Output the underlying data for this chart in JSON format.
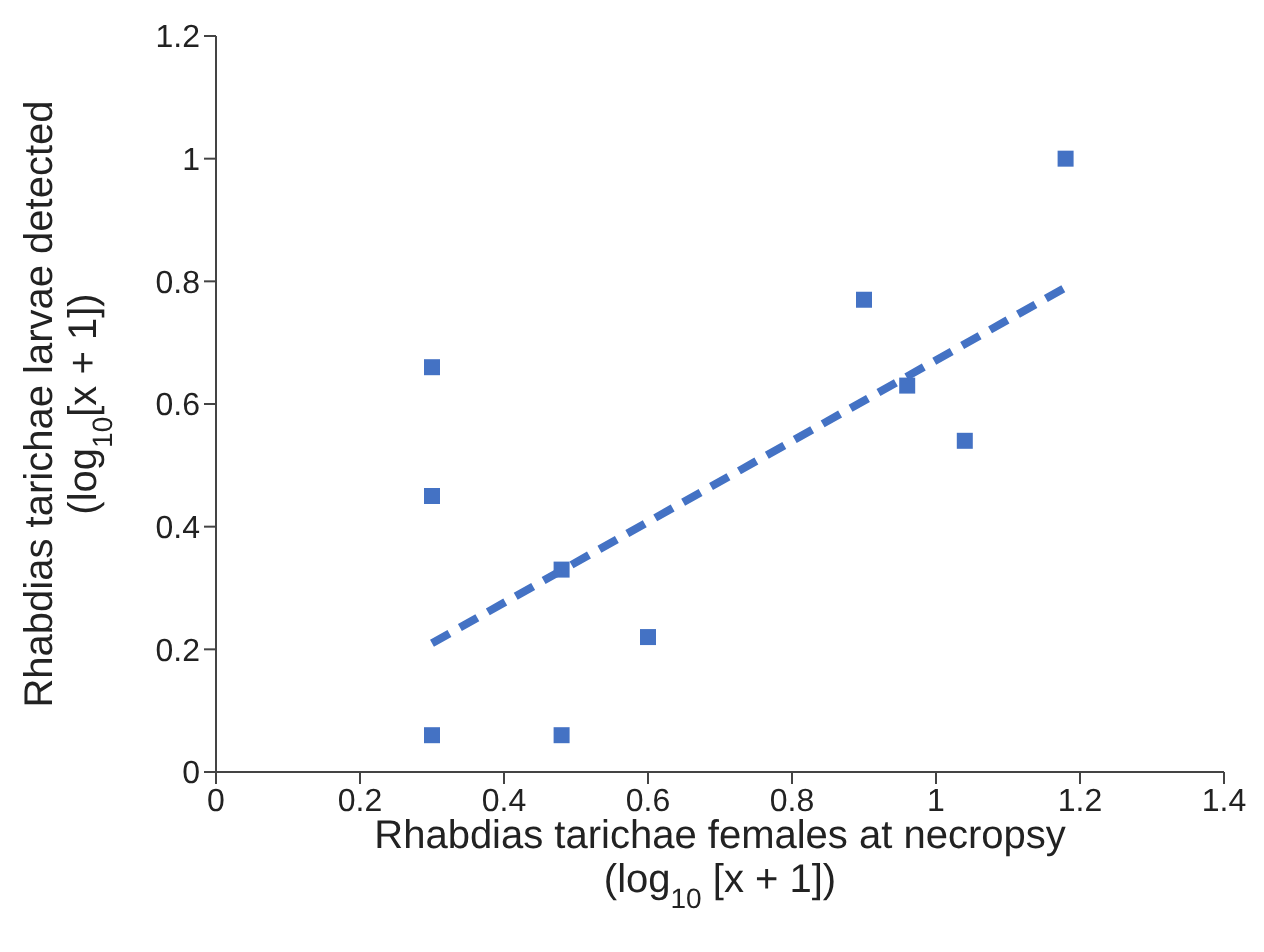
{
  "chart_data": {
    "type": "scatter",
    "xlabel": "Rhabdias tarichae females at necropsy\n(log$_{10}$ [x + 1])",
    "ylabel": "Rhabdias tarichae larvae detected\n(log$_{10}$[x + 1])",
    "xlim": [
      0,
      1.4
    ],
    "xticks": [
      0,
      0.2,
      0.4,
      0.6,
      0.8,
      1,
      1.2,
      1.4
    ],
    "ylim": [
      0,
      1.2
    ],
    "yticks": [
      0,
      0.2,
      0.4,
      0.6,
      0.8,
      1,
      1.2
    ],
    "grid": false,
    "series": [
      {
        "color": "#4472c4",
        "marker": "square",
        "x": [
          0.3,
          0.3,
          0.3,
          0.48,
          0.48,
          0.6,
          0.9,
          0.96,
          1.04,
          1.18
        ],
        "values": [
          0.66,
          0.45,
          0.06,
          0.33,
          0.06,
          0.22,
          0.77,
          0.63,
          0.54,
          1.0
        ]
      },
      {
        "type": "line",
        "color": "#4472c4",
        "line_style": "dashed",
        "x": [
          0.3,
          1.18
        ],
        "values": [
          0.21,
          0.79
        ]
      }
    ]
  }
}
